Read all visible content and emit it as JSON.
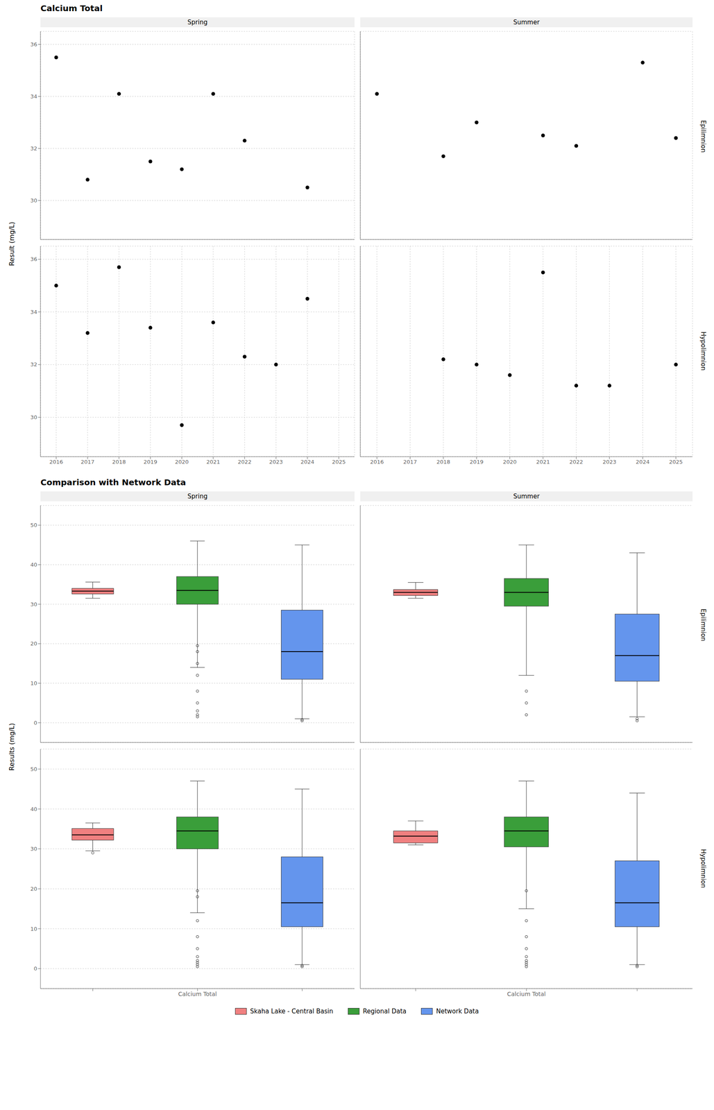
{
  "chart_data": [
    {
      "type": "scatter",
      "title": "Calcium Total",
      "ylabel": "Result (mg/L)",
      "xlim": [
        2015.5,
        2025.5
      ],
      "xticks": [
        2016,
        2017,
        2018,
        2019,
        2020,
        2021,
        2022,
        2023,
        2024,
        2025
      ],
      "ylim": [
        28.5,
        36.5
      ],
      "yticks": [
        30,
        32,
        34,
        36
      ],
      "grid": true,
      "color": "#000000",
      "column_labels": [
        "Spring",
        "Summer"
      ],
      "row_labels": [
        "Epilimnion",
        "Hypolimnion"
      ],
      "panels": [
        [
          {
            "x": [
              2016,
              2017,
              2018,
              2019,
              2020,
              2021,
              2022,
              2024
            ],
            "values": [
              35.5,
              30.8,
              34.1,
              31.5,
              31.2,
              34.1,
              32.3,
              30.5
            ]
          },
          {
            "x": [
              2016,
              2018,
              2019,
              2021,
              2022,
              2024,
              2025
            ],
            "values": [
              34.1,
              31.7,
              33.0,
              32.5,
              32.1,
              35.3,
              32.4
            ]
          }
        ],
        [
          {
            "x": [
              2016,
              2017,
              2018,
              2019,
              2020,
              2021,
              2022,
              2023,
              2024
            ],
            "values": [
              35.0,
              33.2,
              35.7,
              33.4,
              29.7,
              33.6,
              32.3,
              32.0,
              34.5
            ]
          },
          {
            "x": [
              2018,
              2019,
              2020,
              2021,
              2022,
              2023,
              2025
            ],
            "values": [
              32.2,
              32.0,
              31.6,
              35.5,
              31.2,
              31.2,
              32.0
            ]
          }
        ]
      ]
    },
    {
      "type": "box",
      "title": "Comparison with Network Data",
      "ylabel": "Results (mg/L)",
      "categories": [
        null,
        "Calcium Total",
        null
      ],
      "ylim": [
        -5,
        55
      ],
      "yticks": [
        0,
        10,
        20,
        30,
        40,
        50
      ],
      "grid": true,
      "legend": "bottom",
      "series": [
        {
          "name": "Skaha Lake - Central Basin",
          "color": "#F08080"
        },
        {
          "name": "Regional Data",
          "color": "#3a9e3a"
        },
        {
          "name": "Network Data",
          "color": "#6495ED"
        }
      ],
      "column_labels": [
        "Spring",
        "Summer"
      ],
      "row_labels": [
        "Epilimnion",
        "Hypolimnion"
      ],
      "panels": [
        [
          {
            "boxes": [
              {
                "q1": 32.6,
                "median": 33.3,
                "q3": 34.0,
                "whisker_low": 31.5,
                "whisker_high": 35.6,
                "outliers": []
              },
              {
                "q1": 30.0,
                "median": 33.5,
                "q3": 37.0,
                "whisker_low": 14.0,
                "whisker_high": 46.0,
                "outliers": [
                  19.5,
                  18.0,
                  15.0,
                  12.0,
                  8.0,
                  5.0,
                  3.0,
                  2.0,
                  1.5
                ]
              },
              {
                "q1": 11.0,
                "median": 18.0,
                "q3": 28.5,
                "whisker_low": 1.0,
                "whisker_high": 45.0,
                "outliers": [
                  0.5,
                  0.8
                ]
              }
            ]
          },
          {
            "boxes": [
              {
                "q1": 32.2,
                "median": 33.0,
                "q3": 33.7,
                "whisker_low": 31.5,
                "whisker_high": 35.5,
                "outliers": []
              },
              {
                "q1": 29.5,
                "median": 33.0,
                "q3": 36.5,
                "whisker_low": 12.0,
                "whisker_high": 45.0,
                "outliers": [
                  8.0,
                  5.0,
                  2.0
                ]
              },
              {
                "q1": 10.5,
                "median": 17.0,
                "q3": 27.5,
                "whisker_low": 1.5,
                "whisker_high": 43.0,
                "outliers": [
                  0.5,
                  1.0
                ]
              }
            ]
          }
        ],
        [
          {
            "boxes": [
              {
                "q1": 32.2,
                "median": 33.5,
                "q3": 35.1,
                "whisker_low": 29.5,
                "whisker_high": 36.5,
                "outliers": [
                  29.0
                ]
              },
              {
                "q1": 30.0,
                "median": 34.5,
                "q3": 38.0,
                "whisker_low": 14.0,
                "whisker_high": 47.0,
                "outliers": [
                  19.5,
                  18.0,
                  12.0,
                  8.0,
                  5.0,
                  3.0,
                  2.0,
                  1.5,
                  1.0,
                  0.5
                ]
              },
              {
                "q1": 10.5,
                "median": 16.5,
                "q3": 28.0,
                "whisker_low": 1.0,
                "whisker_high": 45.0,
                "outliers": [
                  0.5,
                  0.8
                ]
              }
            ]
          },
          {
            "boxes": [
              {
                "q1": 31.5,
                "median": 33.2,
                "q3": 34.5,
                "whisker_low": 31.0,
                "whisker_high": 37.0,
                "outliers": []
              },
              {
                "q1": 30.5,
                "median": 34.5,
                "q3": 38.0,
                "whisker_low": 15.0,
                "whisker_high": 47.0,
                "outliers": [
                  19.5,
                  12.0,
                  8.0,
                  5.0,
                  3.0,
                  2.0,
                  1.5,
                  1.0,
                  0.5
                ]
              },
              {
                "q1": 10.5,
                "median": 16.5,
                "q3": 27.0,
                "whisker_low": 1.0,
                "whisker_high": 44.0,
                "outliers": [
                  0.5,
                  0.8
                ]
              }
            ]
          }
        ]
      ]
    }
  ]
}
